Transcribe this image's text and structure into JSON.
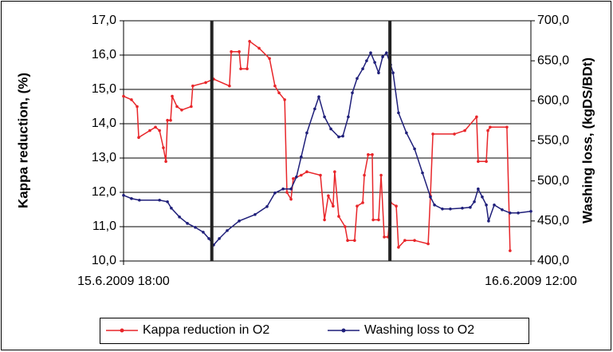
{
  "chart_data": {
    "type": "line",
    "ylabel": "Kappa reduction, (%)",
    "y2label": "Washing loss, (kgDS/BDt)",
    "xlim": [
      0,
      18
    ],
    "xticks": [
      {
        "value": 0,
        "label": "15.6.2009 18:00"
      },
      {
        "value": 18,
        "label": "16.6.2009 12:00"
      }
    ],
    "ylim": [
      10,
      17
    ],
    "yticks": [
      {
        "value": 10,
        "label": "10,0"
      },
      {
        "value": 11,
        "label": "11,0"
      },
      {
        "value": 12,
        "label": "12,0"
      },
      {
        "value": 13,
        "label": "13,0"
      },
      {
        "value": 14,
        "label": "14,0"
      },
      {
        "value": 15,
        "label": "15,0"
      },
      {
        "value": 16,
        "label": "16,0"
      },
      {
        "value": 17,
        "label": "17,0"
      }
    ],
    "y2lim": [
      400,
      700
    ],
    "y2ticks": [
      {
        "value": 400,
        "label": "400,0"
      },
      {
        "value": 450,
        "label": "450,0"
      },
      {
        "value": 500,
        "label": "500,0"
      },
      {
        "value": 550,
        "label": "550,0"
      },
      {
        "value": 600,
        "label": "600,0"
      },
      {
        "value": 650,
        "label": "650,0"
      },
      {
        "value": 700,
        "label": "700,0"
      }
    ],
    "grid": true,
    "vlines": [
      3.9,
      11.77
    ],
    "legend": "bottom",
    "series": [
      {
        "name": "Kappa reduction in O2",
        "color": "#e8262a",
        "x": [
          0,
          0.35,
          0.6,
          0.67,
          1.16,
          1.41,
          1.59,
          1.76,
          1.87,
          1.94,
          2.08,
          2.15,
          2.36,
          2.57,
          2.99,
          3.06,
          3.63,
          3.98,
          4.68,
          4.76,
          5.11,
          5.18,
          5.46,
          5.57,
          5.99,
          6.45,
          6.69,
          6.87,
          7.12,
          7.22,
          7.4,
          7.5,
          7.85,
          8.1,
          8.7,
          8.88,
          9.05,
          9.26,
          9.33,
          9.51,
          9.79,
          9.9,
          10.21,
          10.32,
          10.57,
          10.64,
          10.81,
          10.99,
          11.03,
          11.27,
          11.38,
          11.52,
          11.69,
          11.8,
          12.05,
          12.15,
          12.43,
          12.86,
          13.46,
          13.56,
          13.67,
          14.62,
          15.08,
          15.6,
          15.67,
          16.03,
          16.1,
          16.2,
          16.94,
          17.08
        ],
        "values": [
          14.8,
          14.7,
          14.5,
          13.6,
          13.8,
          13.9,
          13.8,
          13.3,
          12.9,
          14.1,
          14.1,
          14.8,
          14.5,
          14.4,
          14.5,
          15.1,
          15.2,
          15.3,
          15.1,
          16.1,
          16.1,
          15.6,
          15.6,
          16.4,
          16.2,
          15.9,
          15.1,
          14.9,
          14.7,
          12.0,
          11.8,
          12.4,
          12.5,
          12.6,
          12.5,
          11.2,
          11.9,
          11.6,
          12.6,
          11.3,
          11.0,
          10.6,
          10.6,
          11.6,
          11.7,
          12.5,
          13.1,
          13.1,
          11.2,
          11.2,
          12.5,
          10.7,
          10.7,
          11.7,
          11.6,
          10.4,
          10.6,
          10.6,
          10.5,
          11.9,
          13.7,
          13.7,
          13.8,
          14.2,
          12.9,
          12.9,
          13.8,
          13.9,
          13.9,
          10.3
        ]
      },
      {
        "name": "Washing loss to O2",
        "color": "#1f1f7a",
        "axis": "y2",
        "x": [
          0,
          0.35,
          0.7,
          1.59,
          1.94,
          2.11,
          2.47,
          2.82,
          3.17,
          3.52,
          3.77,
          3.98,
          4.23,
          4.58,
          5.11,
          5.81,
          6.34,
          6.69,
          7.05,
          7.4,
          7.64,
          7.85,
          8.1,
          8.45,
          8.63,
          8.88,
          9.16,
          9.51,
          9.69,
          9.93,
          10.11,
          10.32,
          10.57,
          10.74,
          10.92,
          11.1,
          11.27,
          11.45,
          11.62,
          11.8,
          11.91,
          12.15,
          12.5,
          12.86,
          13.21,
          13.56,
          13.74,
          14.09,
          14.44,
          14.97,
          15.32,
          15.5,
          15.67,
          15.85,
          16.03,
          16.13,
          16.38,
          16.73,
          17.08,
          17.44,
          18
        ],
        "values": [
          482,
          478,
          476,
          476,
          474,
          466,
          455,
          447,
          442,
          436,
          428,
          420,
          428,
          438,
          450,
          458,
          468,
          485,
          490,
          490,
          505,
          530,
          560,
          590,
          605,
          580,
          565,
          555,
          556,
          580,
          610,
          628,
          640,
          650,
          660,
          648,
          635,
          655,
          660,
          645,
          635,
          585,
          560,
          540,
          510,
          480,
          470,
          465,
          465,
          466,
          467,
          474,
          490,
          480,
          470,
          450,
          470,
          464,
          460,
          460,
          462
        ]
      }
    ]
  }
}
